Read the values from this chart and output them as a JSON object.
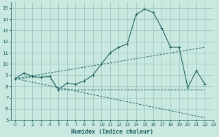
{
  "xlabel": "Humidex (Indice chaleur)",
  "xlim": [
    -0.5,
    23
  ],
  "ylim": [
    5,
    15.5
  ],
  "xticks": [
    0,
    1,
    2,
    3,
    4,
    5,
    6,
    7,
    8,
    9,
    10,
    11,
    12,
    13,
    14,
    15,
    16,
    17,
    18,
    19,
    20,
    21,
    22,
    23
  ],
  "yticks": [
    5,
    6,
    7,
    8,
    9,
    10,
    11,
    12,
    13,
    14,
    15
  ],
  "bg_color": "#c8e8e0",
  "grid_color": "#a0c8c0",
  "line_color": "#1e6060",
  "line1": {
    "x": [
      0,
      1,
      2,
      3,
      4,
      5,
      6,
      7,
      8,
      9,
      10,
      11,
      12,
      13,
      14,
      15,
      16,
      17,
      18,
      19,
      20,
      21,
      22
    ],
    "y": [
      8.7,
      9.2,
      8.9,
      8.8,
      8.9,
      7.7,
      8.3,
      8.2,
      8.5,
      9.0,
      10.0,
      11.0,
      11.5,
      11.8,
      14.4,
      14.9,
      14.6,
      13.2,
      11.5,
      11.5,
      7.9,
      9.4,
      8.2
    ]
  },
  "line2_diag_up": {
    "x": [
      0,
      22
    ],
    "y": [
      8.7,
      11.5
    ]
  },
  "line2_diag_down": {
    "x": [
      0,
      22
    ],
    "y": [
      8.7,
      5.2
    ]
  },
  "line3_flat": {
    "x": [
      0,
      4,
      5,
      22
    ],
    "y": [
      8.7,
      8.9,
      7.7,
      7.7
    ]
  }
}
